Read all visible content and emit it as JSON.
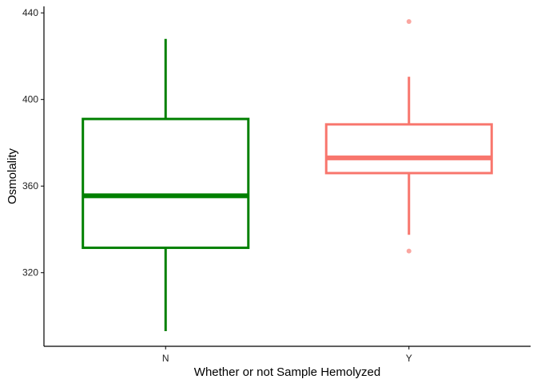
{
  "chart_data": {
    "type": "box",
    "title": "",
    "xlabel": "Whether or not Sample Hemolyzed",
    "ylabel": "Osmolality",
    "ylim": [
      286,
      443
    ],
    "yticks": [
      320,
      360,
      400,
      440
    ],
    "categories": [
      "N",
      "Y"
    ],
    "grid": false,
    "legend": "none",
    "boxes": [
      {
        "category": "N",
        "color": "#008000",
        "whisker_low": 293,
        "q1": 331.5,
        "median": 355.5,
        "q3": 391,
        "whisker_high": 428,
        "outliers": []
      },
      {
        "category": "Y",
        "color": "#F8766D",
        "whisker_low": 337.5,
        "q1": 366,
        "median": 373,
        "q3": 388.5,
        "whisker_high": 410.5,
        "outliers": [
          436,
          330
        ]
      }
    ]
  }
}
